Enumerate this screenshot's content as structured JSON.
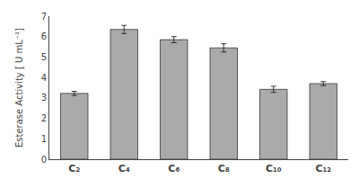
{
  "chart_data": {
    "type": "bar",
    "categories": [
      "C₂",
      "C₄",
      "C₆",
      "C₈",
      "C₁₀",
      "C₁₂"
    ],
    "values": [
      3.22,
      6.35,
      5.85,
      5.45,
      3.42,
      3.7
    ],
    "errors": [
      0.1,
      0.2,
      0.15,
      0.2,
      0.15,
      0.1
    ],
    "color": "#aaaaaa",
    "ylabel": "Esterase Activity [ U mL⁻¹]",
    "ylim": [
      0,
      7
    ],
    "yticks": [
      0,
      1,
      2,
      3,
      4,
      5,
      6,
      7
    ],
    "grid": false
  }
}
